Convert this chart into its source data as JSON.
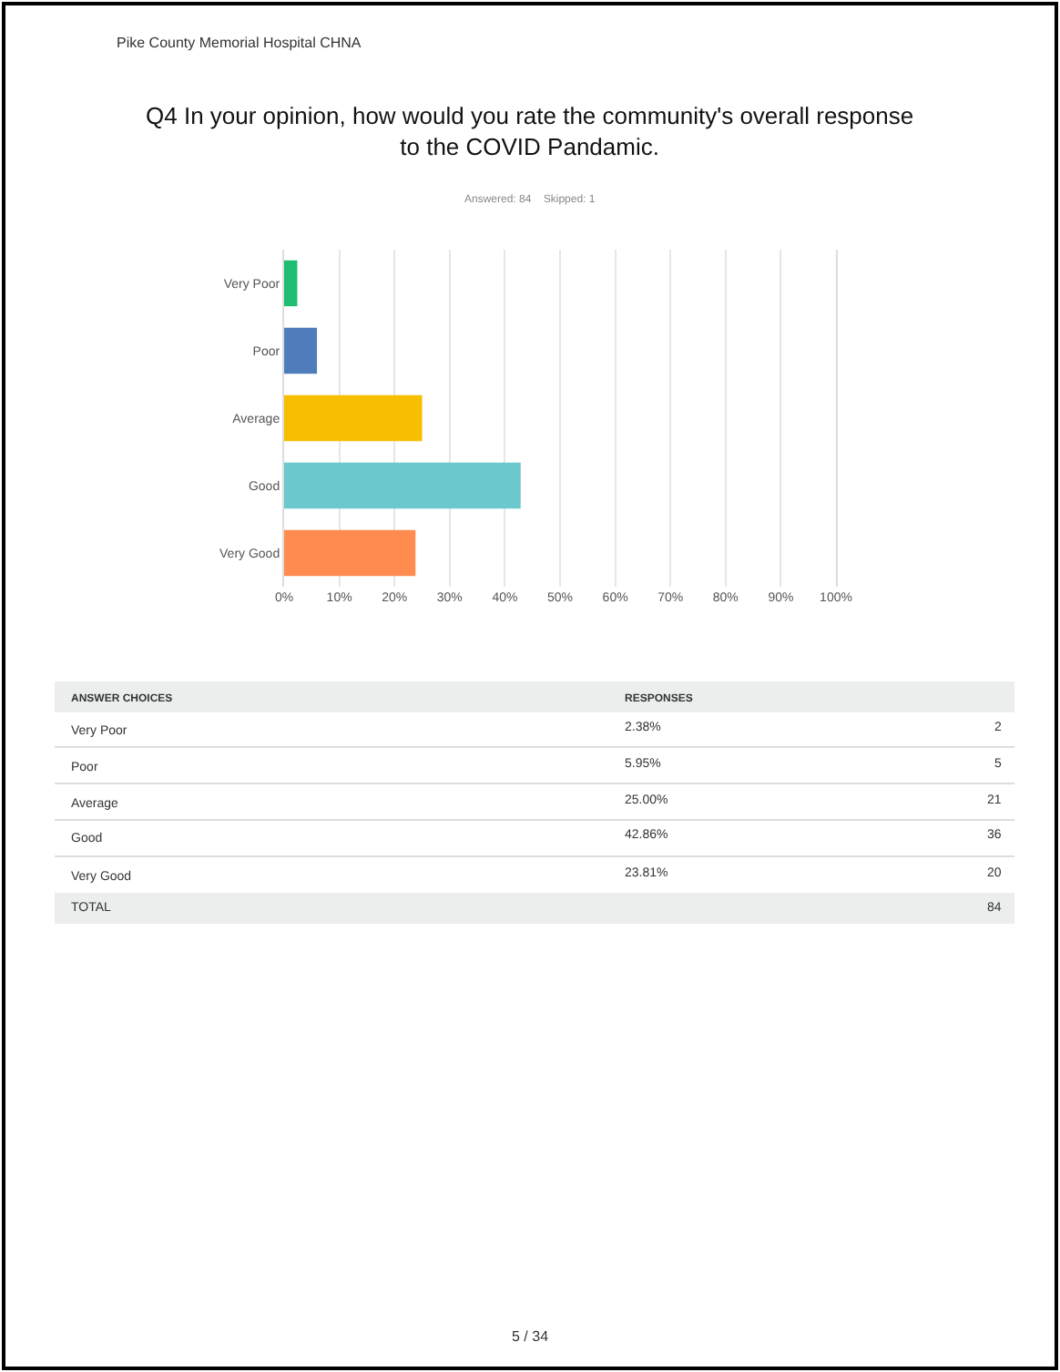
{
  "chart_data": {
    "type": "bar",
    "orientation": "horizontal",
    "title": "Q4 In your opinion, how would you rate the community's overall response to the COVID Pandamic.",
    "subtitle": "Answered: 84    Skipped: 1",
    "categories": [
      "Very Poor",
      "Poor",
      "Average",
      "Good",
      "Very Good"
    ],
    "values": [
      2.38,
      5.95,
      25.0,
      42.86,
      23.81
    ],
    "colors": [
      "#1fbd6f",
      "#4f7cba",
      "#f8be00",
      "#6bc8cd",
      "#ff8b4f"
    ],
    "xlim": [
      0,
      100
    ],
    "xticks": [
      {
        "value": 0,
        "label": "0%"
      },
      {
        "value": 10,
        "label": "10%"
      },
      {
        "value": 20,
        "label": "20%"
      },
      {
        "value": 30,
        "label": "30%"
      },
      {
        "value": 40,
        "label": "40%"
      },
      {
        "value": 50,
        "label": "50%"
      },
      {
        "value": 60,
        "label": "60%"
      },
      {
        "value": 70,
        "label": "70%"
      },
      {
        "value": 80,
        "label": "80%"
      },
      {
        "value": 90,
        "label": "90%"
      },
      {
        "value": 100,
        "label": "100%"
      }
    ],
    "grid": "x",
    "annotations": [
      "Pike County Memorial Hospital CHNA",
      "ANSWER CHOICES",
      "RESPONSES",
      "2.38%",
      "5.95%",
      "25.00%",
      "42.86%",
      "23.81%",
      "2",
      "5",
      "21",
      "36",
      "20",
      "TOTAL",
      "84",
      "5 / 34"
    ]
  }
}
